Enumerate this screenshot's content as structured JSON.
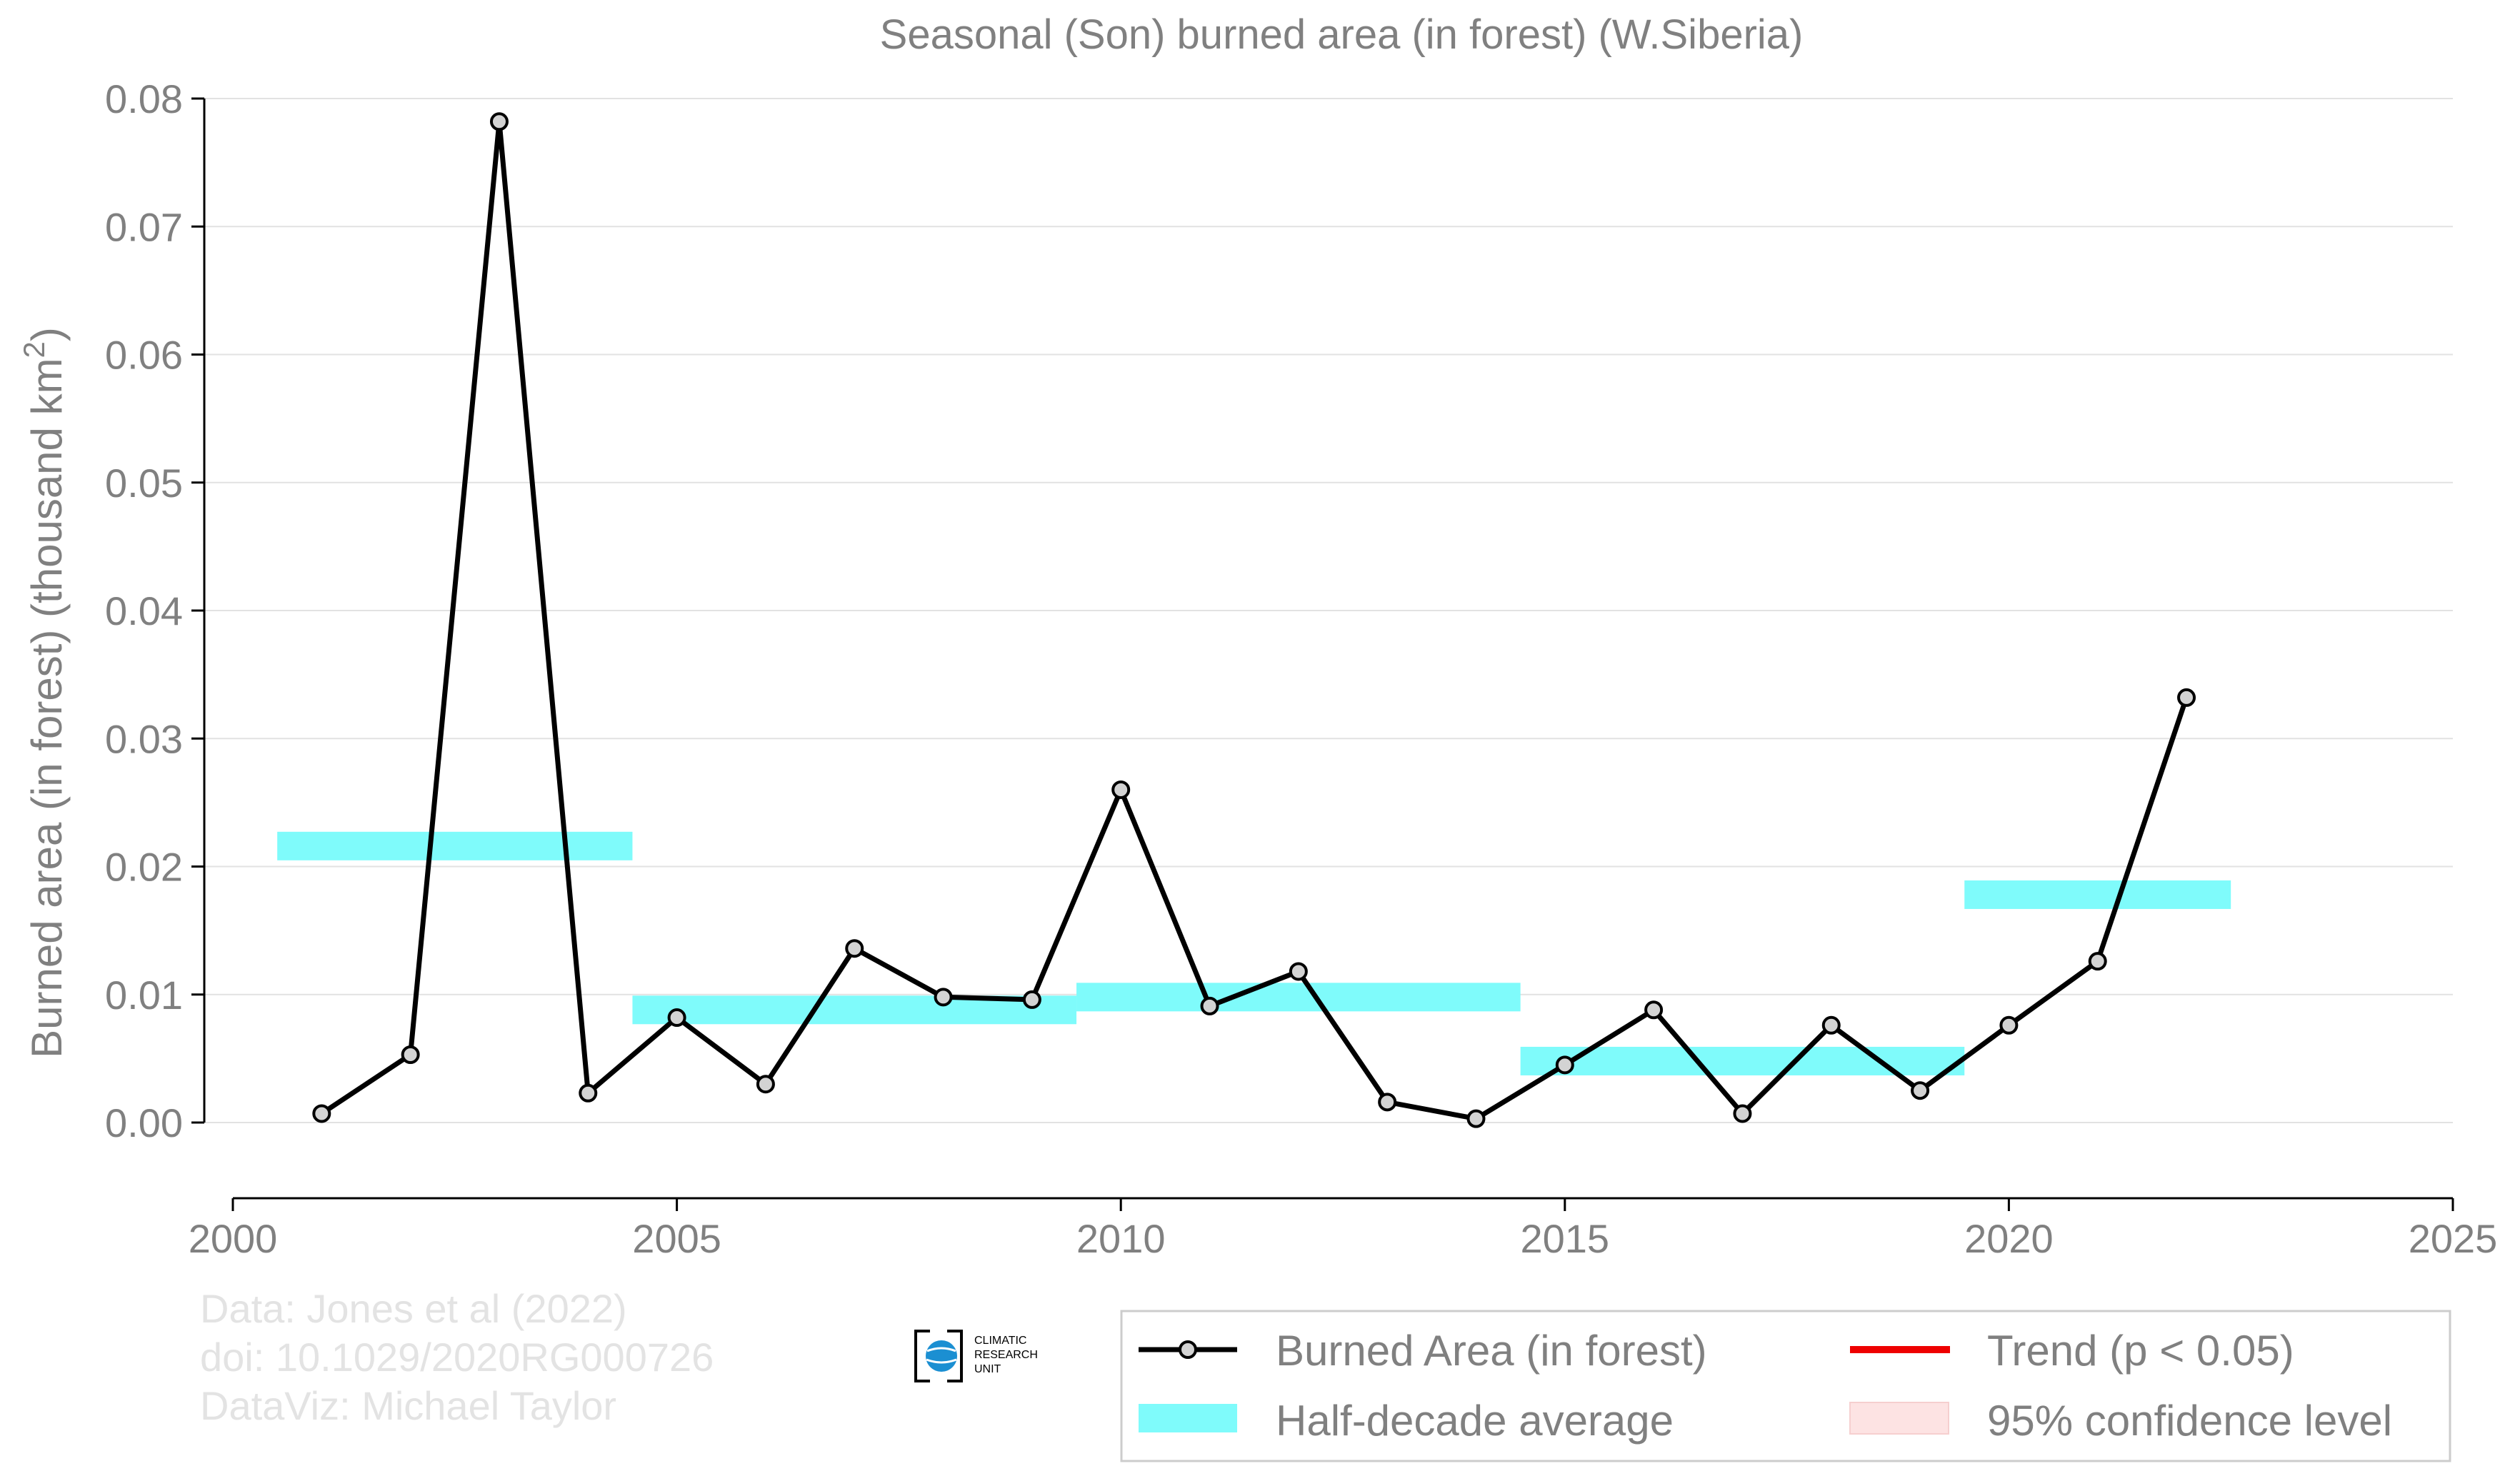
{
  "chart_data": {
    "type": "line",
    "title": "Seasonal (Son) burned area (in forest) (W.Siberia)",
    "ylabel": "Burned area (in forest) (thousand km",
    "ylabel_sup": "2",
    "ylabel_close": ")",
    "xlim": [
      2000,
      2025
    ],
    "ylim": [
      -0.006,
      0.08
    ],
    "x_ticks": [
      2000,
      2005,
      2010,
      2015,
      2020,
      2025
    ],
    "x_tick_labels": [
      "2000",
      "2005",
      "2010",
      "2015",
      "2020",
      "2025"
    ],
    "y_ticks": [
      0.0,
      0.01,
      0.02,
      0.03,
      0.04,
      0.05,
      0.06,
      0.07,
      0.08
    ],
    "y_tick_labels": [
      "0.00",
      "0.01",
      "0.02",
      "0.03",
      "0.04",
      "0.05",
      "0.06",
      "0.07",
      "0.08"
    ],
    "grid": "horizontal",
    "legend_position": "bottom-right",
    "series": [
      {
        "name": "Burned Area (in forest)",
        "color": "#000000",
        "marker_fill": "#d3d3d3",
        "x": [
          2001,
          2002,
          2003,
          2004,
          2005,
          2006,
          2007,
          2008,
          2009,
          2010,
          2011,
          2012,
          2013,
          2014,
          2015,
          2016,
          2017,
          2018,
          2019,
          2020,
          2021,
          2022
        ],
        "y": [
          0.0007,
          0.0053,
          0.0782,
          0.0023,
          0.0082,
          0.003,
          0.0136,
          0.0098,
          0.0096,
          0.026,
          0.0091,
          0.0118,
          0.0016,
          0.0003,
          0.0045,
          0.0088,
          0.0007,
          0.0076,
          0.0025,
          0.0076,
          0.0126,
          0.0332
        ]
      }
    ],
    "half_decade_averages": {
      "name": "Half-decade average",
      "color": "#7ffbfb",
      "segments": [
        {
          "x_start": 2000.5,
          "x_end": 2004.5,
          "value": 0.0216
        },
        {
          "x_start": 2004.5,
          "x_end": 2009.5,
          "value": 0.0088
        },
        {
          "x_start": 2009.5,
          "x_end": 2014.5,
          "value": 0.0098
        },
        {
          "x_start": 2014.5,
          "x_end": 2019.5,
          "value": 0.0048
        },
        {
          "x_start": 2019.5,
          "x_end": 2022.5,
          "value": 0.0178
        }
      ]
    },
    "legend": [
      {
        "label": "Burned Area (in forest)",
        "kind": "line-marker",
        "color": "#000000"
      },
      {
        "label": "Trend (p < 0.05)",
        "kind": "line",
        "color": "#ee0000"
      },
      {
        "label": "Half-decade average",
        "kind": "patch",
        "color": "#7ffbfb"
      },
      {
        "label": "95% confidence level",
        "kind": "patch",
        "color": "#fde3e3"
      }
    ]
  },
  "credits": {
    "line1": "Data: Jones et al (2022)",
    "line2": "doi: 10.1029/2020RG000726",
    "line3": "DataViz: Michael Taylor"
  },
  "logo": {
    "line1": "CLIMATIC",
    "line2": "RESEARCH",
    "line3": "UNIT"
  }
}
